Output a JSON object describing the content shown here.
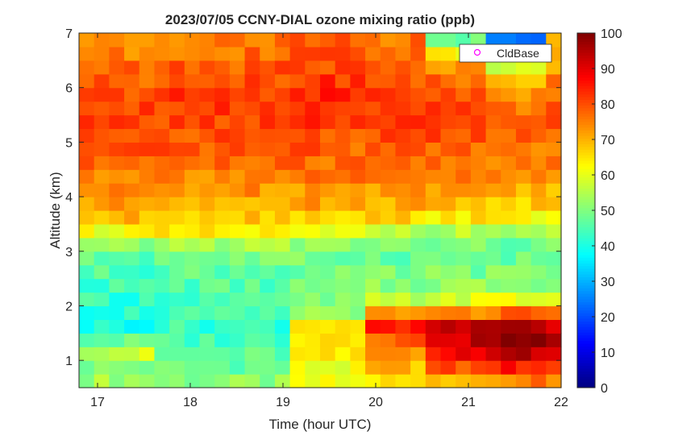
{
  "chart_data": {
    "type": "heatmap",
    "title": "2023/07/05 CCNY-DIAL ozone mixing ratio (ppb)",
    "xlabel": "Time (hour UTC)",
    "ylabel": "Altitude (km)",
    "xlim": [
      16.8,
      22.0
    ],
    "ylim": [
      0.5,
      7.0
    ],
    "xticks": [
      17,
      18,
      19,
      20,
      21,
      22
    ],
    "yticks": [
      1,
      2,
      3,
      4,
      5,
      6,
      7
    ],
    "colorbar": {
      "colormap": "jet",
      "range": [
        0,
        100
      ],
      "ticks": [
        0,
        10,
        20,
        30,
        40,
        50,
        60,
        70,
        80,
        90,
        100
      ]
    },
    "legend": {
      "placement": "top-right",
      "entries": [
        {
          "label": "CldBase",
          "marker": "circle",
          "color": "#ff00ff"
        }
      ]
    },
    "x_bins": {
      "start": 16.8,
      "end": 22.0,
      "count": 32
    },
    "y_bins": {
      "start": 0.5,
      "end": 7.0,
      "count": 26
    },
    "profile_altitudes_km": [
      0.5,
      0.9,
      1.2,
      1.45,
      1.65,
      1.8,
      2.0,
      2.4,
      2.8,
      3.05,
      3.25,
      3.45,
      3.7,
      4.2,
      4.8,
      5.2,
      5.6,
      5.9,
      6.2,
      6.5,
      6.7,
      7.0
    ],
    "profile_ozone_ppb_by_segment": [
      {
        "x_from": 16.8,
        "x_to": 17.6,
        "values": [
          55,
          50,
          60,
          42,
          40,
          42,
          42,
          44,
          46,
          48,
          55,
          66,
          70,
          74,
          78,
          80,
          82,
          80,
          78,
          76,
          74,
          74
        ]
      },
      {
        "x_from": 17.6,
        "x_to": 19.0,
        "values": [
          52,
          48,
          46,
          44,
          43,
          43,
          44,
          46,
          48,
          52,
          58,
          66,
          70,
          74,
          78,
          80,
          82,
          82,
          80,
          78,
          76,
          76
        ]
      },
      {
        "x_from": 19.0,
        "x_to": 19.9,
        "values": [
          60,
          60,
          64,
          68,
          66,
          55,
          50,
          48,
          48,
          50,
          54,
          62,
          70,
          74,
          78,
          80,
          84,
          84,
          82,
          80,
          78,
          78
        ]
      },
      {
        "x_from": 19.9,
        "x_to": 20.6,
        "values": [
          62,
          70,
          76,
          80,
          84,
          78,
          58,
          50,
          48,
          49,
          52,
          60,
          70,
          74,
          78,
          80,
          82,
          82,
          80,
          78,
          76,
          76
        ]
      },
      {
        "x_from": 20.6,
        "x_to": 21.2,
        "values": [
          66,
          80,
          90,
          94,
          92,
          80,
          62,
          52,
          48,
          48,
          50,
          58,
          68,
          74,
          78,
          80,
          80,
          80,
          76,
          70,
          60,
          40
        ]
      },
      {
        "x_from": 21.2,
        "x_to": 21.8,
        "values": [
          70,
          86,
          98,
          100,
          96,
          84,
          64,
          52,
          48,
          47,
          50,
          56,
          66,
          72,
          76,
          78,
          76,
          72,
          66,
          50,
          35,
          20
        ]
      },
      {
        "x_from": 21.8,
        "x_to": 22.0,
        "values": [
          66,
          82,
          92,
          94,
          90,
          80,
          62,
          52,
          48,
          48,
          50,
          56,
          66,
          72,
          76,
          78,
          78,
          76,
          74,
          72,
          70,
          70
        ]
      }
    ]
  }
}
